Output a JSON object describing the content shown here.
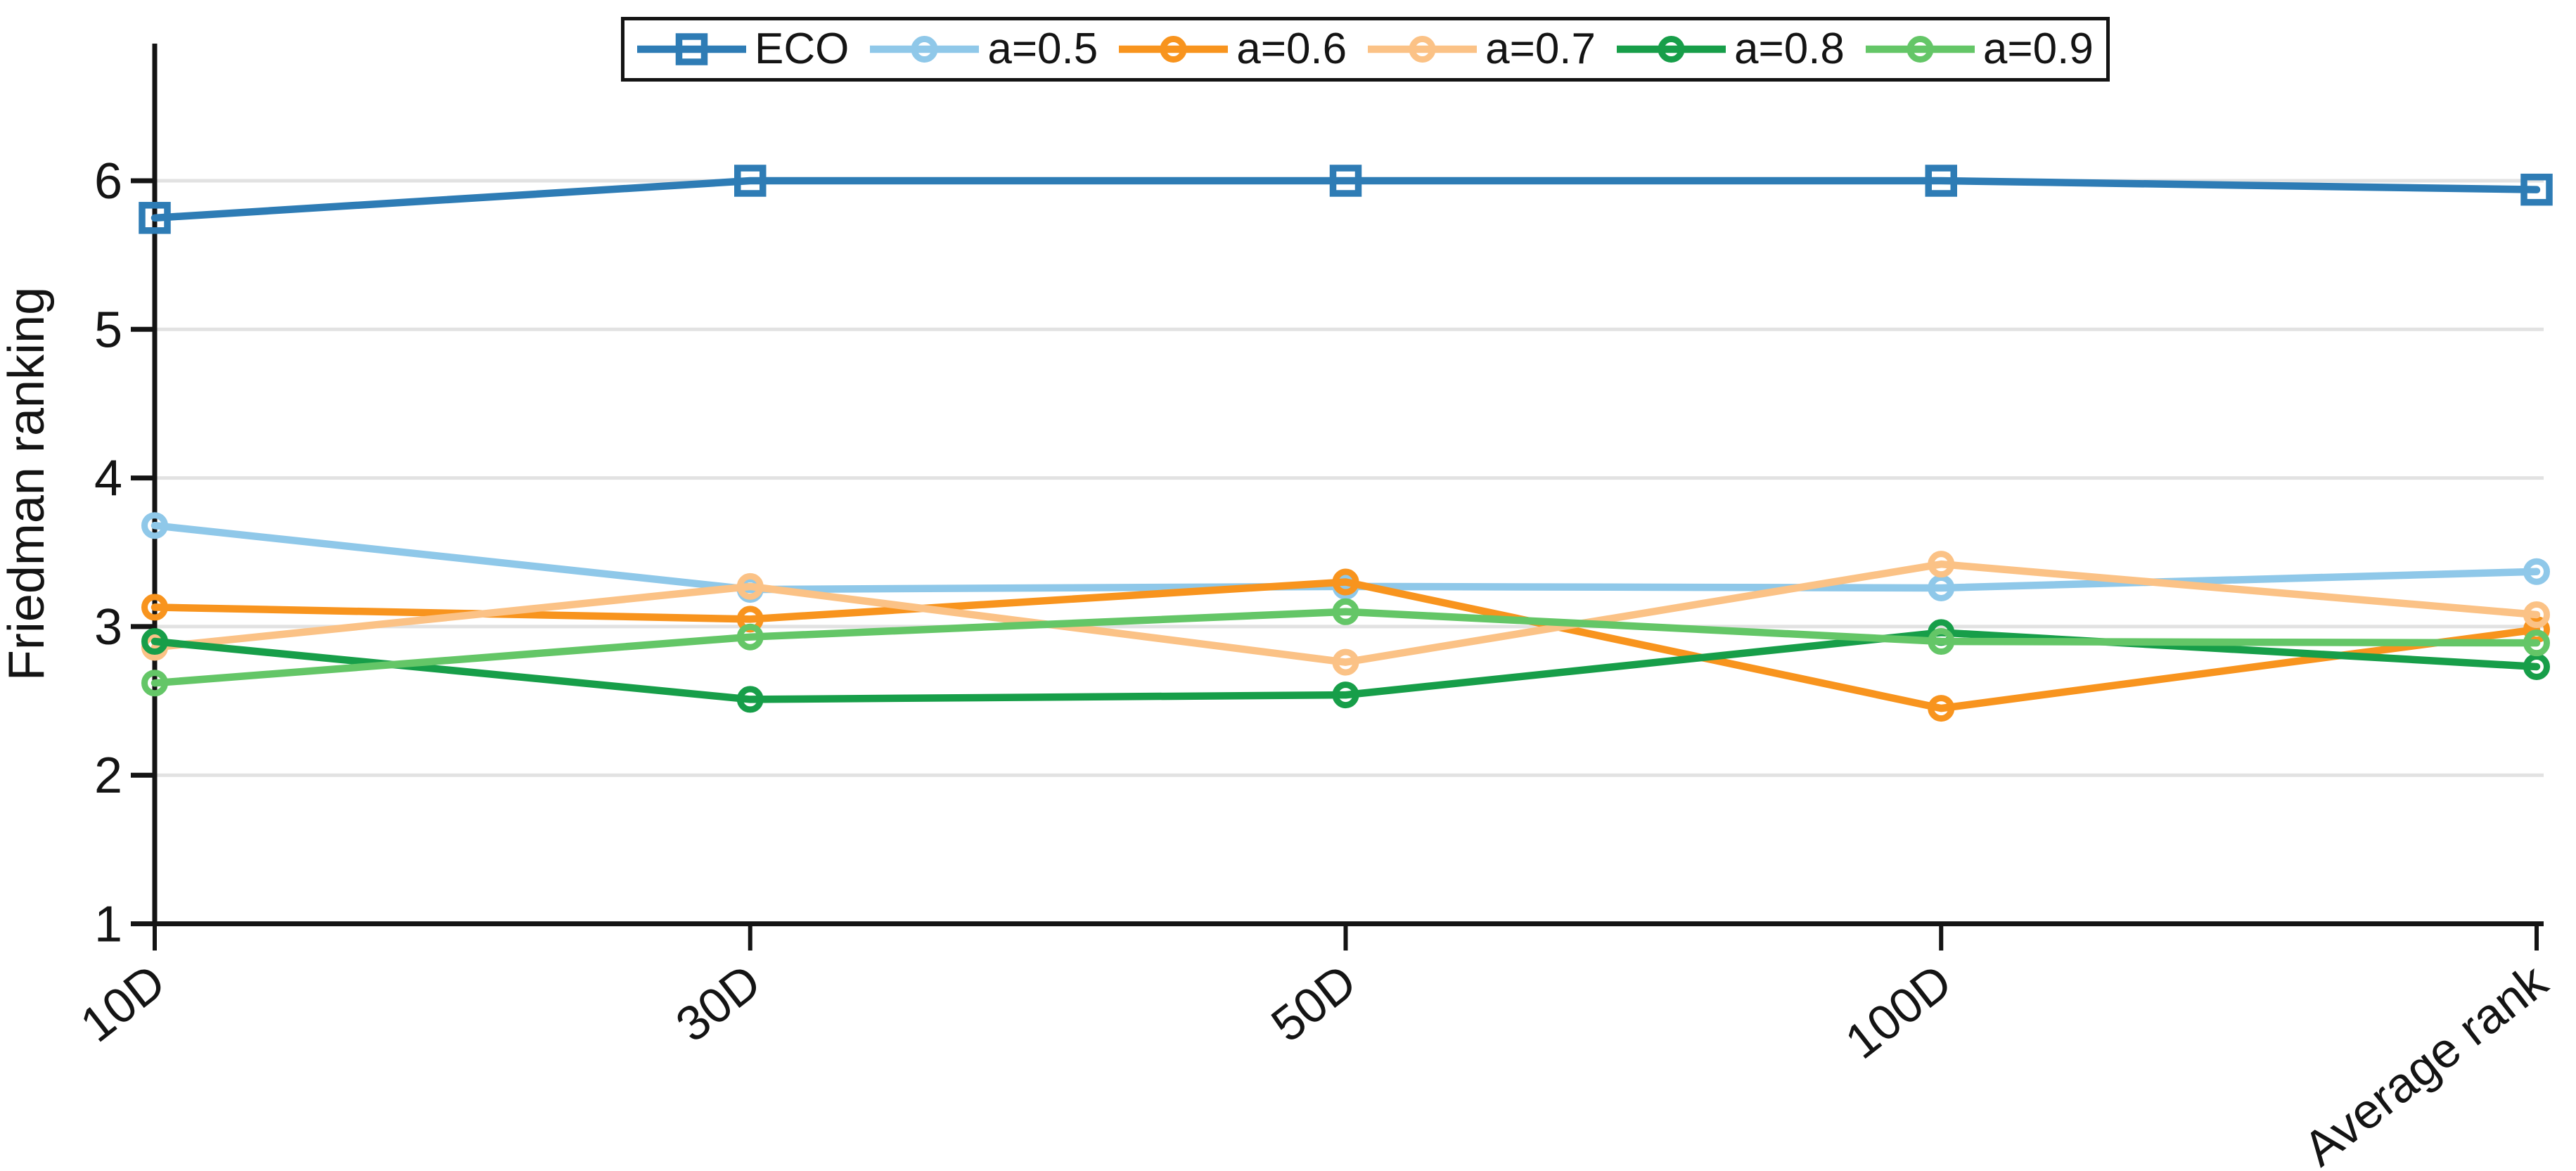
{
  "chart_data": {
    "type": "line",
    "title": "",
    "xlabel": "",
    "ylabel": "Friedman ranking",
    "categories": [
      "10D",
      "30D",
      "50D",
      "100D",
      "Average rank"
    ],
    "yticks": [
      1,
      2,
      3,
      4,
      5,
      6
    ],
    "ylim": [
      1,
      6.9
    ],
    "grid": "horizontal-light",
    "legend_position": "top-center",
    "axis_color": "#141414",
    "gridline_color": "#e2e2e2",
    "series": [
      {
        "name": "ECO",
        "color": "#2e7cb5",
        "marker": "square",
        "values": [
          5.75,
          6.0,
          6.0,
          6.0,
          5.94
        ]
      },
      {
        "name": "a=0.5",
        "color": "#8fc8e9",
        "marker": "circle",
        "values": [
          3.68,
          3.25,
          3.27,
          3.26,
          3.37
        ]
      },
      {
        "name": "a=0.6",
        "color": "#f8941e",
        "marker": "circle",
        "values": [
          3.13,
          3.05,
          3.3,
          2.45,
          2.98
        ]
      },
      {
        "name": "a=0.7",
        "color": "#fbc286",
        "marker": "circle",
        "values": [
          2.86,
          3.27,
          2.76,
          3.42,
          3.08
        ]
      },
      {
        "name": "a=0.8",
        "color": "#179e49",
        "marker": "circle",
        "values": [
          2.9,
          2.51,
          2.54,
          2.96,
          2.73
        ]
      },
      {
        "name": "a=0.9",
        "color": "#64c667",
        "marker": "circle",
        "values": [
          2.62,
          2.93,
          3.1,
          2.9,
          2.89
        ]
      }
    ]
  }
}
